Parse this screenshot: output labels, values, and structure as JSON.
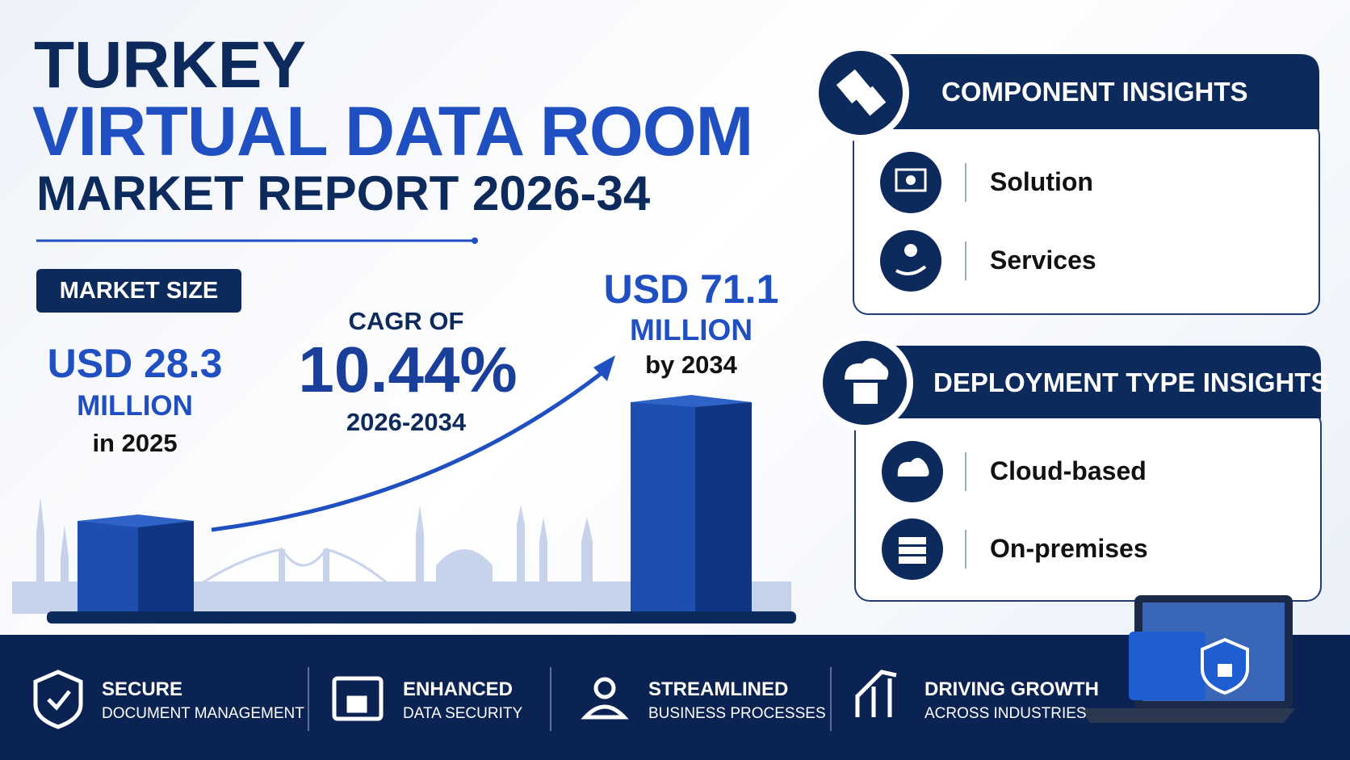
{
  "title": {
    "line1": "TURKEY",
    "line2": "VIRTUAL DATA ROOM",
    "line3": "MARKET REPORT 2026-34"
  },
  "market_size": {
    "badge": "MARKET SIZE",
    "start": {
      "value": "USD 28.3",
      "unit": "MILLION",
      "period": "in 2025"
    },
    "cagr": {
      "label": "CAGR OF",
      "value": "10.44%",
      "period": "2026-2034"
    },
    "end": {
      "value": "USD 71.1",
      "unit": "MILLION",
      "period": "by 2034"
    }
  },
  "panels": [
    {
      "title": "COMPONENT INSIGHTS",
      "items": [
        "Solution",
        "Services"
      ]
    },
    {
      "title": "DEPLOYMENT TYPE INSIGHTS",
      "items": [
        "Cloud-based",
        "On-premises"
      ]
    }
  ],
  "footer": [
    {
      "title": "SECURE",
      "subtitle": "DOCUMENT MANAGEMENT"
    },
    {
      "title": "ENHANCED",
      "subtitle": "DATA SECURITY"
    },
    {
      "title": "STREAMLINED",
      "subtitle": "BUSINESS PROCESSES"
    },
    {
      "title": "DRIVING GROWTH",
      "subtitle": "ACROSS INDUSTRIES"
    }
  ]
}
